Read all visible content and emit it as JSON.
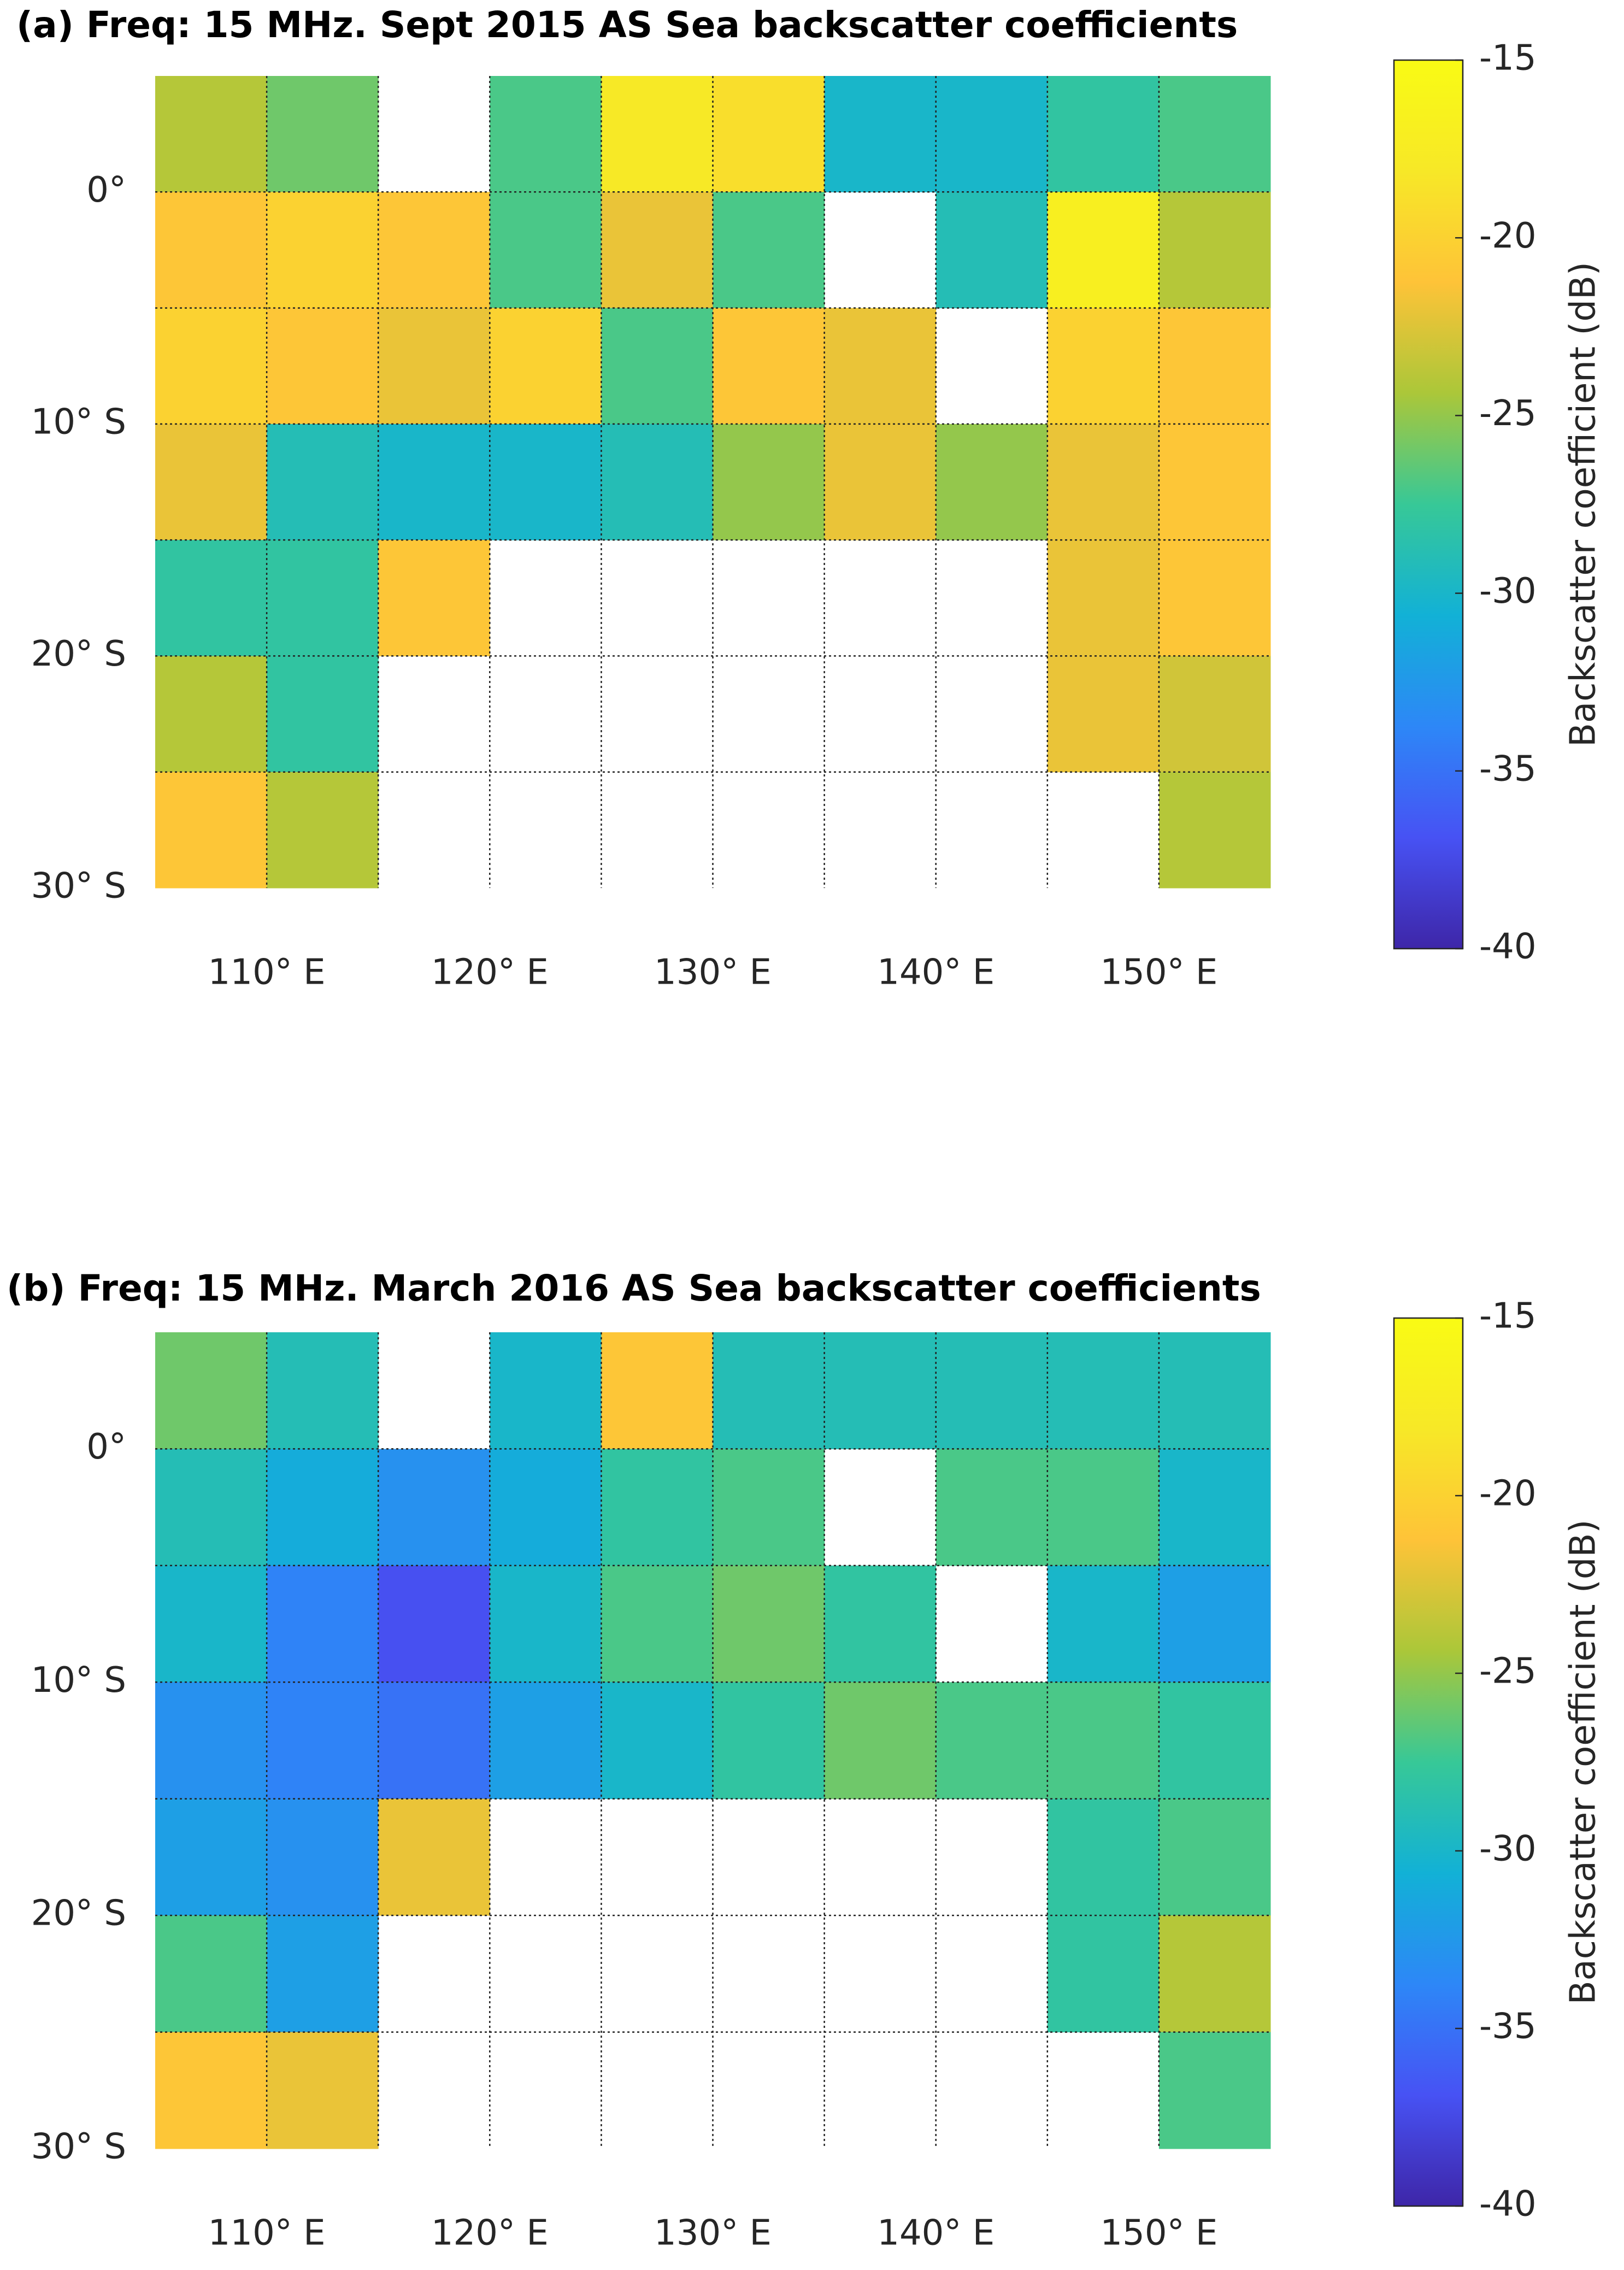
{
  "chart_data": [
    {
      "type": "heatmap",
      "title": "(a) Freq: 15 MHz. Sept 2015 AS Sea backscatter coefficients",
      "x": [
        107.5,
        112.5,
        117.5,
        122.5,
        127.5,
        132.5,
        137.5,
        142.5,
        147.5,
        152.5
      ],
      "y": [
        2.5,
        -2.5,
        -7.5,
        -12.5,
        -17.5,
        -22.5,
        -27.5
      ],
      "z": [
        [
          -24,
          -26,
          null,
          -27,
          -18,
          -19,
          -30,
          -30,
          -28,
          -27
        ],
        [
          -21,
          -20,
          -21,
          -27,
          -22,
          -27,
          null,
          -29,
          -17,
          -24
        ],
        [
          -20,
          -21,
          -22,
          -20,
          -27,
          -21,
          -22,
          null,
          -20,
          -21
        ],
        [
          -22,
          -29,
          -30,
          -30,
          -29,
          -25,
          -22,
          -25,
          -22,
          -21
        ],
        [
          -28,
          -28,
          -21,
          null,
          null,
          null,
          null,
          null,
          -22,
          -21
        ],
        [
          -24,
          -28,
          null,
          null,
          null,
          null,
          null,
          null,
          -22,
          -23
        ],
        [
          -21,
          -24,
          null,
          null,
          null,
          null,
          null,
          null,
          null,
          -24
        ]
      ],
      "xlim": [
        105,
        155
      ],
      "ylim": [
        -30,
        5
      ],
      "xticks": [
        {
          "value": 110,
          "label": "110° E"
        },
        {
          "value": 120,
          "label": "120° E"
        },
        {
          "value": 130,
          "label": "130° E"
        },
        {
          "value": 140,
          "label": "140° E"
        },
        {
          "value": 150,
          "label": "150° E"
        }
      ],
      "yticks": [
        {
          "value": 0,
          "label": "0°"
        },
        {
          "value": -10,
          "label": "10° S"
        },
        {
          "value": -20,
          "label": "20° S"
        },
        {
          "value": -30,
          "label": "30° S"
        }
      ],
      "xgrid": [
        110,
        115,
        120,
        125,
        130,
        135,
        140,
        145,
        150
      ],
      "ygrid": [
        0,
        -5,
        -10,
        -15,
        -20,
        -25
      ],
      "colorbar": {
        "label": "Backscatter coefficient (dB)",
        "clim": [
          -40,
          -15
        ],
        "ticks": [
          -15,
          -20,
          -25,
          -30,
          -35,
          -40
        ]
      }
    },
    {
      "type": "heatmap",
      "title": "(b) Freq: 15 MHz. March 2016 AS Sea backscatter coefficients",
      "x": [
        107.5,
        112.5,
        117.5,
        122.5,
        127.5,
        132.5,
        137.5,
        142.5,
        147.5,
        152.5
      ],
      "y": [
        2.5,
        -2.5,
        -7.5,
        -12.5,
        -17.5,
        -22.5,
        -27.5
      ],
      "z": [
        [
          -26,
          -29,
          null,
          -30,
          -21,
          -29,
          -29,
          -29,
          -29,
          -29
        ],
        [
          -29,
          -31,
          -33,
          -31,
          -28,
          -27,
          null,
          -27,
          -27,
          -30
        ],
        [
          -30,
          -34,
          -37,
          -30,
          -27,
          -26,
          -28,
          null,
          -30,
          -32
        ],
        [
          -33,
          -34,
          -35,
          -32,
          -30,
          -28,
          -26,
          -27,
          -27,
          -28
        ],
        [
          -32,
          -33,
          -22,
          null,
          null,
          null,
          null,
          null,
          -28,
          -27
        ],
        [
          -27,
          -32,
          null,
          null,
          null,
          null,
          null,
          null,
          -28,
          -24
        ],
        [
          -21,
          -22,
          null,
          null,
          null,
          null,
          null,
          null,
          null,
          -27
        ]
      ],
      "xlim": [
        105,
        155
      ],
      "ylim": [
        -30,
        5
      ],
      "xticks": [
        {
          "value": 110,
          "label": "110° E"
        },
        {
          "value": 120,
          "label": "120° E"
        },
        {
          "value": 130,
          "label": "130° E"
        },
        {
          "value": 140,
          "label": "140° E"
        },
        {
          "value": 150,
          "label": "150° E"
        }
      ],
      "yticks": [
        {
          "value": 0,
          "label": "0°"
        },
        {
          "value": -10,
          "label": "10° S"
        },
        {
          "value": -20,
          "label": "20° S"
        },
        {
          "value": -30,
          "label": "30° S"
        }
      ],
      "xgrid": [
        110,
        115,
        120,
        125,
        130,
        135,
        140,
        145,
        150
      ],
      "ygrid": [
        0,
        -5,
        -10,
        -15,
        -20,
        -25
      ],
      "colorbar": {
        "label": "Backscatter coefficient (dB)",
        "clim": [
          -40,
          -15
        ],
        "ticks": [
          -15,
          -20,
          -25,
          -30,
          -35,
          -40
        ]
      }
    }
  ]
}
